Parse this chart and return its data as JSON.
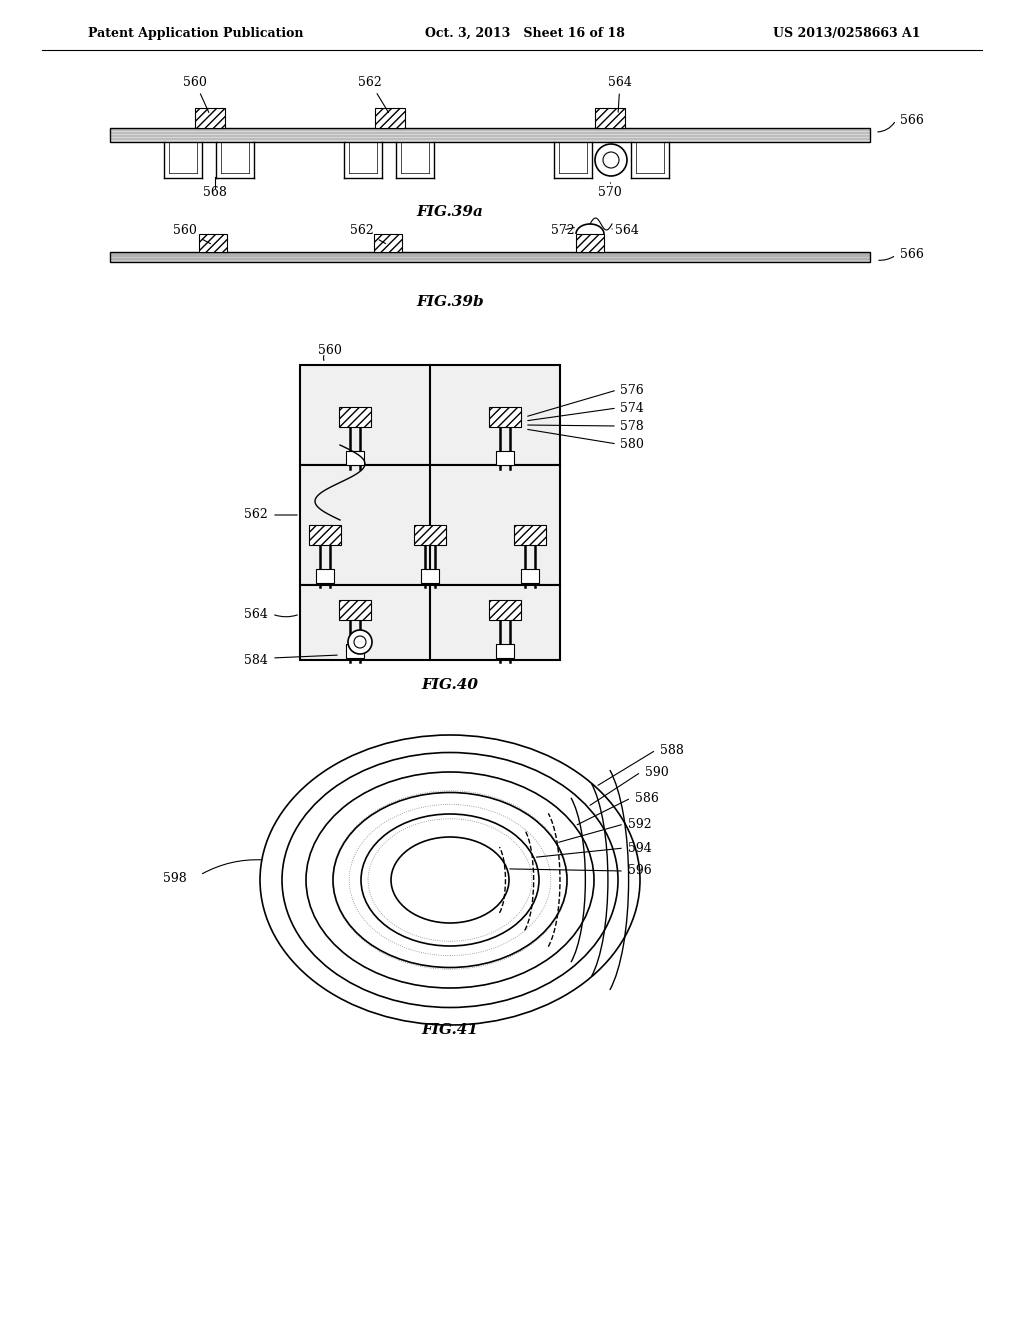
{
  "bg_color": "#ffffff",
  "header_left": "Patent Application Publication",
  "header_mid": "Oct. 3, 2013   Sheet 16 of 18",
  "header_right": "US 2013/0258663 A1",
  "fig39a_label": "FIG.39a",
  "fig39b_label": "FIG.39b",
  "fig40_label": "FIG.40",
  "fig41_label": "FIG.41"
}
